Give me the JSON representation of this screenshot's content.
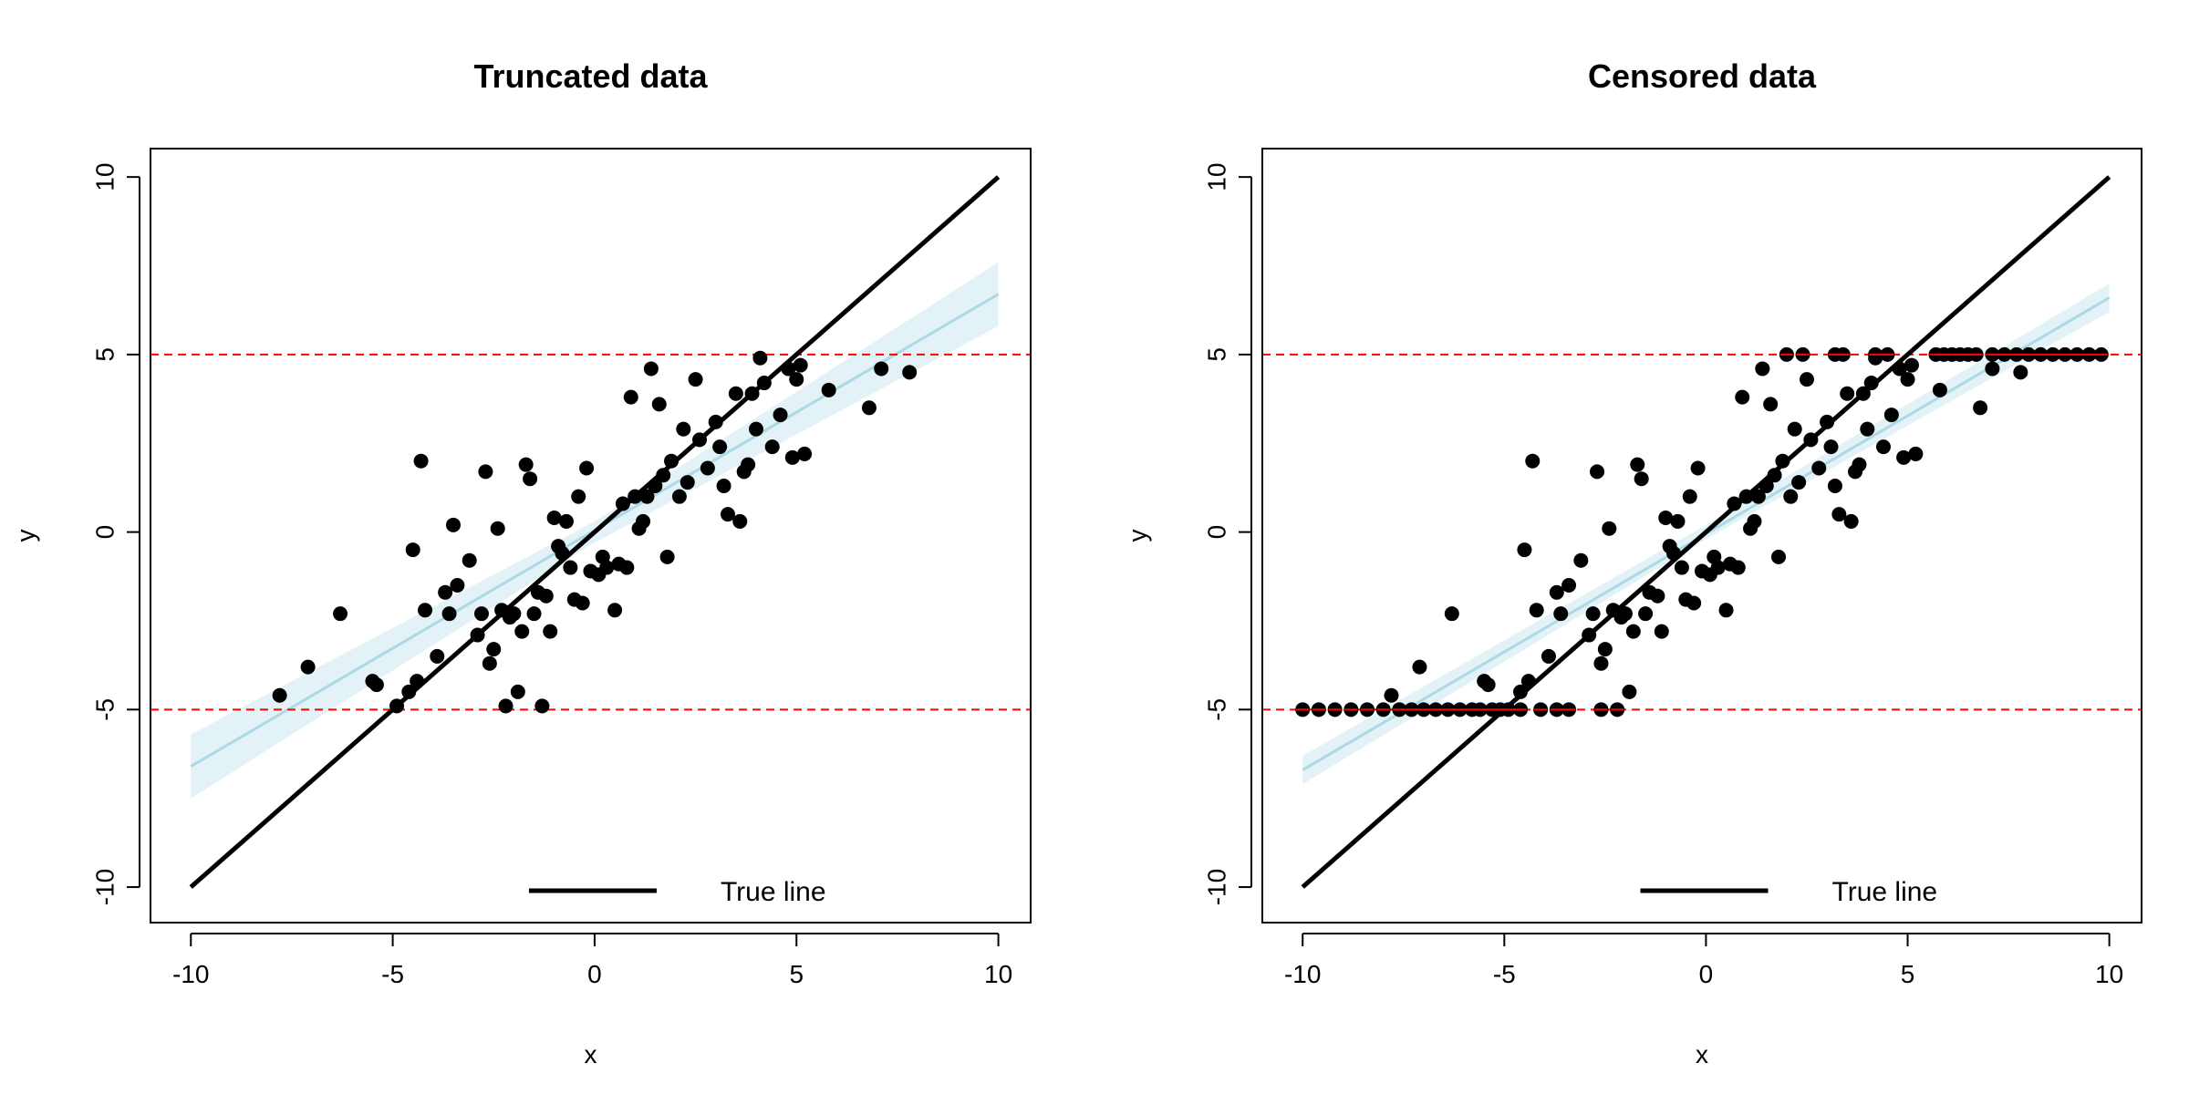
{
  "figure": {
    "colors": {
      "points": "#000000",
      "true_line": "#000000",
      "fit_line": "#add8e6",
      "fit_band": "#e3f2f7",
      "limit_lines": "#ff0000"
    }
  },
  "chart_data": [
    {
      "type": "scatter",
      "title": "Truncated data",
      "xlabel": "x",
      "ylabel": "y",
      "xlim": [
        -11,
        10.8
      ],
      "ylim": [
        -11,
        10.8
      ],
      "xticks": [
        -10,
        -5,
        0,
        5,
        10
      ],
      "yticks": [
        -10,
        -5,
        0,
        5,
        10
      ],
      "grid": false,
      "legend": {
        "position": "bottom-right",
        "entries": [
          "True line"
        ]
      },
      "true_line": {
        "x": [
          -10,
          10
        ],
        "y": [
          -10,
          10
        ]
      },
      "fit_line": {
        "x": [
          -10,
          10
        ],
        "y": [
          -6.6,
          6.7
        ]
      },
      "fit_band": {
        "x": [
          -10,
          0,
          10
        ],
        "lower": [
          -7.5,
          -0.3,
          5.8
        ],
        "upper": [
          -5.7,
          0.3,
          7.6
        ]
      },
      "limit_lines": [
        -5,
        5
      ],
      "points": {
        "x": [
          -7.8,
          -7.1,
          -6.3,
          -5.5,
          -5.4,
          -4.9,
          -4.6,
          -4.5,
          -4.4,
          -4.3,
          -4.2,
          -3.9,
          -3.7,
          -3.6,
          -3.5,
          -3.4,
          -3.1,
          -2.9,
          -2.8,
          -2.7,
          -2.6,
          -2.5,
          -2.4,
          -2.3,
          -2.2,
          -2.1,
          -2.0,
          -1.9,
          -1.8,
          -1.7,
          -1.6,
          -1.5,
          -1.4,
          -1.3,
          -1.2,
          -1.1,
          -1.0,
          -0.9,
          -0.8,
          -0.7,
          -0.6,
          -0.5,
          -0.4,
          -0.3,
          -0.2,
          -0.1,
          0.1,
          0.2,
          0.3,
          0.5,
          0.6,
          0.7,
          0.8,
          0.9,
          1.0,
          1.1,
          1.2,
          1.3,
          1.4,
          1.5,
          1.6,
          1.7,
          1.8,
          1.9,
          2.1,
          2.2,
          2.3,
          2.5,
          2.6,
          2.8,
          3.0,
          3.1,
          3.2,
          3.3,
          3.5,
          3.6,
          3.7,
          3.8,
          3.9,
          4.0,
          4.1,
          4.2,
          4.4,
          4.6,
          4.8,
          4.9,
          5.0,
          5.1,
          5.2,
          5.8,
          6.8,
          7.1,
          7.8
        ],
        "y": [
          -4.6,
          -3.8,
          -2.3,
          -4.2,
          -4.3,
          -4.9,
          -4.5,
          -0.5,
          -4.2,
          2.0,
          -2.2,
          -3.5,
          -1.7,
          -2.3,
          0.2,
          -1.5,
          -0.8,
          -2.9,
          -2.3,
          1.7,
          -3.7,
          -3.3,
          0.1,
          -2.2,
          -4.9,
          -2.4,
          -2.3,
          -4.5,
          -2.8,
          1.9,
          1.5,
          -2.3,
          -1.7,
          -4.9,
          -1.8,
          -2.8,
          0.4,
          -0.4,
          -0.6,
          0.3,
          -1.0,
          -1.9,
          1.0,
          -2.0,
          1.8,
          -1.1,
          -1.2,
          -0.7,
          -1.0,
          -2.2,
          -0.9,
          0.8,
          -1.0,
          3.8,
          1.0,
          0.1,
          0.3,
          1.0,
          4.6,
          1.3,
          3.6,
          1.6,
          -0.7,
          2.0,
          1.0,
          2.9,
          1.4,
          4.3,
          2.6,
          1.8,
          3.1,
          2.4,
          1.3,
          0.5,
          3.9,
          0.3,
          1.7,
          1.9,
          3.9,
          2.9,
          4.9,
          4.2,
          2.4,
          3.3,
          4.6,
          2.1,
          4.3,
          4.7,
          2.2,
          4.0,
          3.5,
          4.6,
          4.5
        ]
      }
    },
    {
      "type": "scatter",
      "title": "Censored data",
      "xlabel": "x",
      "ylabel": "y",
      "xlim": [
        -11,
        10.8
      ],
      "ylim": [
        -11,
        10.8
      ],
      "xticks": [
        -10,
        -5,
        0,
        5,
        10
      ],
      "yticks": [
        -10,
        -5,
        0,
        5,
        10
      ],
      "grid": false,
      "legend": {
        "position": "bottom-right",
        "entries": [
          "True line"
        ]
      },
      "true_line": {
        "x": [
          -10,
          10
        ],
        "y": [
          -10,
          10
        ]
      },
      "fit_line": {
        "x": [
          -10,
          10
        ],
        "y": [
          -6.7,
          6.6
        ]
      },
      "fit_band": {
        "x": [
          -10,
          0,
          10
        ],
        "lower": [
          -7.1,
          -0.2,
          6.2
        ],
        "upper": [
          -6.3,
          0.2,
          7.0
        ]
      },
      "limit_lines": [
        -5,
        5
      ],
      "points": {
        "x": [
          -7.8,
          -7.1,
          -6.3,
          -5.5,
          -5.4,
          -4.6,
          -4.5,
          -4.4,
          -4.3,
          -4.2,
          -3.9,
          -3.7,
          -3.6,
          -3.4,
          -3.1,
          -2.9,
          -2.8,
          -2.7,
          -2.6,
          -2.5,
          -2.4,
          -2.3,
          -2.1,
          -2.0,
          -1.9,
          -1.8,
          -1.7,
          -1.6,
          -1.5,
          -1.4,
          -1.2,
          -1.1,
          -1.0,
          -0.9,
          -0.8,
          -0.7,
          -0.6,
          -0.5,
          -0.4,
          -0.3,
          -0.2,
          -0.1,
          0.1,
          0.2,
          0.3,
          0.5,
          0.6,
          0.7,
          0.8,
          0.9,
          1.0,
          1.1,
          1.2,
          1.3,
          1.4,
          1.5,
          1.6,
          1.7,
          1.8,
          1.9,
          2.1,
          2.2,
          2.3,
          2.5,
          2.6,
          2.8,
          3.0,
          3.1,
          3.2,
          3.3,
          3.5,
          3.6,
          3.7,
          3.8,
          3.9,
          4.0,
          4.1,
          4.2,
          4.4,
          4.6,
          4.8,
          4.9,
          5.0,
          5.1,
          5.2,
          5.8,
          6.8,
          7.1,
          7.8,
          -10.0,
          -9.6,
          -9.2,
          -8.8,
          -8.4,
          -8.0,
          -7.6,
          -7.3,
          -7.0,
          -6.7,
          -6.4,
          -6.1,
          -5.8,
          -5.6,
          -5.3,
          -5.1,
          -4.9,
          -4.6,
          -4.1,
          -3.7,
          -3.4,
          -2.6,
          -2.2,
          2.0,
          2.4,
          3.2,
          3.4,
          4.2,
          4.5,
          5.7,
          5.9,
          6.1,
          6.3,
          6.5,
          6.7,
          7.1,
          7.4,
          7.7,
          8.0,
          8.3,
          8.6,
          8.9,
          9.2,
          9.5,
          9.8
        ],
        "y": [
          -4.6,
          -3.8,
          -2.3,
          -4.2,
          -4.3,
          -4.5,
          -0.5,
          -4.2,
          2.0,
          -2.2,
          -3.5,
          -1.7,
          -2.3,
          -1.5,
          -0.8,
          -2.9,
          -2.3,
          1.7,
          -3.7,
          -3.3,
          0.1,
          -2.2,
          -2.4,
          -2.3,
          -4.5,
          -2.8,
          1.9,
          1.5,
          -2.3,
          -1.7,
          -1.8,
          -2.8,
          0.4,
          -0.4,
          -0.6,
          0.3,
          -1.0,
          -1.9,
          1.0,
          -2.0,
          1.8,
          -1.1,
          -1.2,
          -0.7,
          -1.0,
          -2.2,
          -0.9,
          0.8,
          -1.0,
          3.8,
          1.0,
          0.1,
          0.3,
          1.0,
          4.6,
          1.3,
          3.6,
          1.6,
          -0.7,
          2.0,
          1.0,
          2.9,
          1.4,
          4.3,
          2.6,
          1.8,
          3.1,
          2.4,
          1.3,
          0.5,
          3.9,
          0.3,
          1.7,
          1.9,
          3.9,
          2.9,
          4.2,
          4.9,
          2.4,
          3.3,
          4.6,
          2.1,
          4.3,
          4.7,
          2.2,
          4.0,
          3.5,
          4.6,
          4.5,
          -5,
          -5,
          -5,
          -5,
          -5,
          -5,
          -5,
          -5,
          -5,
          -5,
          -5,
          -5,
          -5,
          -5,
          -5,
          -5,
          -5,
          -5,
          -5,
          -5,
          -5,
          -5,
          -5,
          5,
          5,
          5,
          5,
          5,
          5,
          5,
          5,
          5,
          5,
          5,
          5,
          5,
          5,
          5,
          5,
          5,
          5,
          5,
          5,
          5,
          5
        ],
        "censored_from": 89
      }
    }
  ]
}
